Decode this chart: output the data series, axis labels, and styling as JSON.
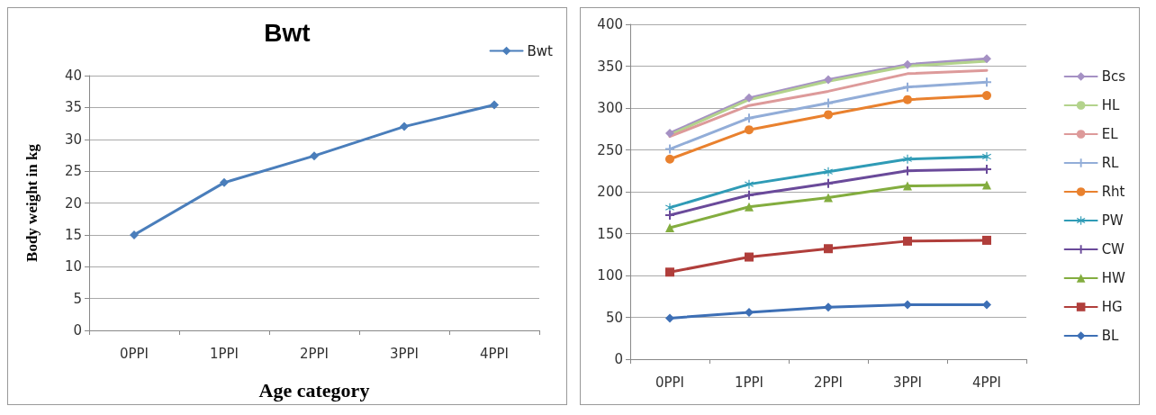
{
  "chart_data": [
    {
      "type": "line",
      "title": "Bwt",
      "xlabel": "Age category",
      "ylabel": "Body weight in kg",
      "categories": [
        "0PPI",
        "1PPI",
        "2PPI",
        "3PPI",
        "4PPI"
      ],
      "series": [
        {
          "name": "Bwt",
          "color": "#4a7ebb",
          "marker": "diamond",
          "values": [
            15,
            23.2,
            27.4,
            32,
            35.4
          ]
        }
      ],
      "ylim": [
        0,
        40
      ],
      "yticks": [
        0,
        5,
        10,
        15,
        20,
        25,
        30,
        35,
        40
      ],
      "grid": "y",
      "legend": "top right"
    },
    {
      "type": "line",
      "categories": [
        "0PPI",
        "1PPI",
        "2PPI",
        "3PPI",
        "4PPI"
      ],
      "series": [
        {
          "name": "Bcs",
          "color": "#a591c4",
          "marker": "diamond",
          "values": [
            270,
            312,
            334,
            352,
            359
          ]
        },
        {
          "name": "HL",
          "color": "#b3d38c",
          "marker": "none",
          "values": [
            268,
            310,
            332,
            350,
            356
          ]
        },
        {
          "name": "EL",
          "color": "#dd9a9a",
          "marker": "none",
          "values": [
            266,
            303,
            320,
            341,
            345
          ]
        },
        {
          "name": "RL",
          "color": "#92add8",
          "marker": "cross",
          "values": [
            251,
            288,
            306,
            325,
            331
          ]
        },
        {
          "name": "Rht",
          "color": "#e9812e",
          "marker": "circle",
          "values": [
            239,
            274,
            292,
            310,
            315
          ]
        },
        {
          "name": "PW",
          "color": "#2f9bb6",
          "marker": "star",
          "values": [
            181,
            209,
            224,
            239,
            242
          ]
        },
        {
          "name": "CW",
          "color": "#6a4a9a",
          "marker": "cross",
          "values": [
            172,
            196,
            210,
            225,
            227
          ]
        },
        {
          "name": "HW",
          "color": "#83ad3f",
          "marker": "triangle",
          "values": [
            157,
            182,
            193,
            207,
            208
          ]
        },
        {
          "name": "HG",
          "color": "#b03e3b",
          "marker": "square",
          "values": [
            104,
            122,
            132,
            141,
            142
          ]
        },
        {
          "name": "BL",
          "color": "#3d6fb5",
          "marker": "diamond",
          "values": [
            49,
            56,
            62,
            65,
            65
          ]
        }
      ],
      "ylim": [
        0,
        400
      ],
      "yticks": [
        0,
        50,
        100,
        150,
        200,
        250,
        300,
        350,
        400
      ],
      "grid": "y",
      "legend": "right"
    }
  ]
}
